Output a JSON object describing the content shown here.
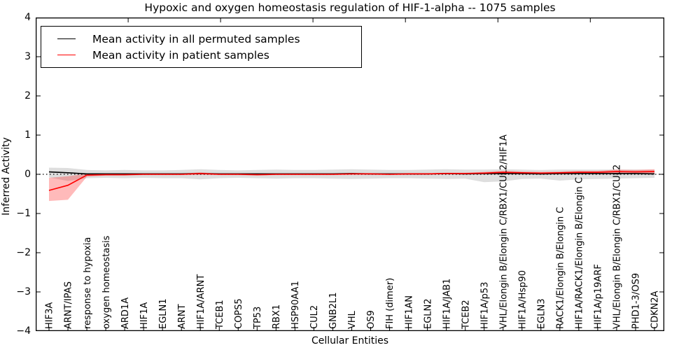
{
  "chart_data": {
    "type": "line",
    "title": "Hypoxic and oxygen homeostasis regulation of HIF-1-alpha -- 1075 samples",
    "xlabel": "Cellular Entities",
    "ylabel": "Inferred Activity",
    "ylim": [
      -4,
      4
    ],
    "yticks": [
      4,
      3,
      2,
      1,
      0,
      -1,
      -2,
      -3,
      -4
    ],
    "grid": false,
    "legend_position": "upper left",
    "zero_line": {
      "style": "dotted",
      "y": 0,
      "color": "#000000"
    },
    "categories": [
      "HIF3A",
      "ARNT/IPAS",
      "response to hypoxia",
      "oxygen homeostasis",
      "ARD1A",
      "HIF1A",
      "EGLN1",
      "ARNT",
      "HIF1A/ARNT",
      "TCEB1",
      "COPS5",
      "TP53",
      "RBX1",
      "HSP90AA1",
      "CUL2",
      "GNB2L1",
      "VHL",
      "OS9",
      "FIH (dimer)",
      "HIF1AN",
      "EGLN2",
      "HIF1A/JAB1",
      "TCEB2",
      "HIF1A/p53",
      "VHL/Elongin B/Elongin C/RBX1/CUL2/HIF1A",
      "HIF1A/Hsp90",
      "EGLN3",
      "RACK1/Elongin B/Elongin C",
      "HIF1A/RACK1/Elongin B/Elongin C",
      "HIF1A/p19ARF",
      "VHL/Elongin B/Elongin C/RBX1/CUL2",
      "PHD1-3/OS9",
      "CDKN2A"
    ],
    "series": [
      {
        "name": "Mean activity in all permuted samples",
        "color": "#000000",
        "values": [
          0.06,
          0.04,
          0.01,
          0.01,
          0.01,
          0.01,
          0.01,
          0.01,
          0.02,
          0.01,
          0.01,
          0.01,
          0.01,
          0.01,
          0.01,
          0.01,
          0.02,
          0.01,
          0.01,
          0.01,
          0.01,
          0.02,
          0.01,
          0.02,
          0.02,
          0.02,
          0.01,
          0.02,
          0.02,
          0.02,
          0.02,
          0.02,
          0.01
        ]
      },
      {
        "name": "Mean activity in patient samples",
        "color": "#ff0000",
        "values": [
          -0.41,
          -0.28,
          -0.02,
          -0.01,
          -0.01,
          0,
          0,
          0,
          0.02,
          0,
          0,
          -0.01,
          0,
          0,
          0,
          0,
          0.01,
          0.01,
          0,
          0.01,
          0.01,
          0.02,
          0.02,
          0.03,
          0.05,
          0.04,
          0.03,
          0.04,
          0.05,
          0.05,
          0.07,
          0.06,
          0.07
        ]
      }
    ],
    "bands": [
      {
        "name": "permuted-confidence-band",
        "color": "rgba(0,0,0,0.13)",
        "upper": [
          0.17,
          0.16,
          0.11,
          0.1,
          0.11,
          0.1,
          0.1,
          0.11,
          0.13,
          0.11,
          0.1,
          0.11,
          0.12,
          0.11,
          0.11,
          0.12,
          0.13,
          0.12,
          0.11,
          0.11,
          0.12,
          0.13,
          0.12,
          0.12,
          0.13,
          0.12,
          0.11,
          0.12,
          0.12,
          0.12,
          0.12,
          0.12,
          0.11
        ],
        "lower": [
          -0.08,
          -0.17,
          -0.1,
          -0.09,
          -0.1,
          -0.09,
          -0.1,
          -0.1,
          -0.13,
          -0.1,
          -0.09,
          -0.1,
          -0.11,
          -0.1,
          -0.1,
          -0.11,
          -0.12,
          -0.11,
          -0.1,
          -0.1,
          -0.11,
          -0.12,
          -0.11,
          -0.2,
          -0.18,
          -0.12,
          -0.11,
          -0.16,
          -0.13,
          -0.12,
          -0.11,
          -0.1,
          -0.09
        ]
      },
      {
        "name": "patient-confidence-band",
        "color": "rgba(255,0,0,0.27)",
        "upper": [
          -0.09,
          -0.05,
          0.01,
          0.01,
          0.02,
          0.02,
          0.02,
          0.02,
          0.05,
          0.02,
          0.02,
          0.02,
          0.02,
          0.02,
          0.02,
          0.02,
          0.03,
          0.03,
          0.02,
          0.03,
          0.03,
          0.04,
          0.04,
          0.06,
          0.09,
          0.07,
          0.06,
          0.07,
          0.09,
          0.09,
          0.12,
          0.11,
          0.13
        ],
        "lower": [
          -0.68,
          -0.65,
          -0.06,
          -0.03,
          -0.03,
          -0.02,
          -0.02,
          -0.02,
          -0.01,
          -0.02,
          -0.02,
          -0.03,
          -0.02,
          -0.02,
          -0.02,
          -0.02,
          -0.01,
          -0.01,
          -0.02,
          -0.01,
          -0.01,
          0,
          0,
          0,
          0.01,
          0.01,
          0,
          0.01,
          0.01,
          0.01,
          0.02,
          0.02,
          0.01
        ]
      }
    ],
    "legend": {
      "entries": [
        {
          "label": "Mean activity in all permuted samples",
          "color": "#000000"
        },
        {
          "label": "Mean activity in patient samples",
          "color": "#ff0000"
        }
      ]
    }
  }
}
